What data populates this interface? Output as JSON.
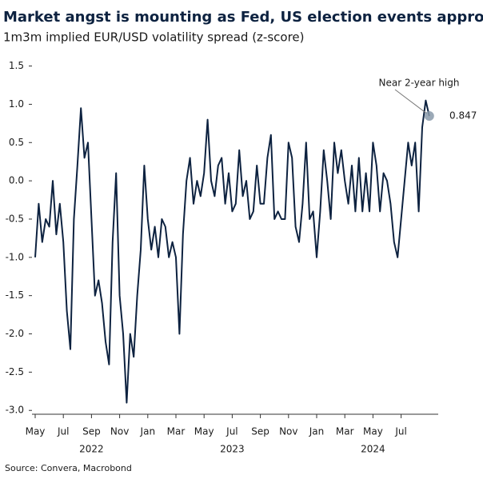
{
  "chart_data": {
    "type": "line",
    "title": "Market angst is mounting as Fed, US election events approach",
    "subtitle": "1m3m implied EUR/USD volatility spread (z-score)",
    "source": "Source: Convera, Macrobond",
    "annotation": "Near 2-year high",
    "categories": [
      "May",
      null,
      null,
      null,
      null,
      null,
      null,
      null,
      "Jul",
      null,
      null,
      null,
      null,
      null,
      null,
      null,
      "Sep",
      null,
      null,
      null,
      null,
      null,
      null,
      null,
      "Nov",
      null,
      null,
      null,
      null,
      null,
      null,
      null,
      "Jan",
      null,
      null,
      null,
      null,
      null,
      null,
      null,
      "Mar",
      null,
      null,
      null,
      null,
      null,
      null,
      null,
      "May",
      null,
      null,
      null,
      null,
      null,
      null,
      null,
      "Jul",
      null,
      null,
      null,
      null,
      null,
      null,
      null,
      "Sep",
      null,
      null,
      null,
      null,
      null,
      null,
      null,
      "Nov",
      null,
      null,
      null,
      null,
      null,
      null,
      null,
      "Jan",
      null,
      null,
      null,
      null,
      null,
      null,
      null,
      "Mar",
      null,
      null,
      null,
      null,
      null,
      null,
      null,
      "May",
      null,
      null,
      null,
      null,
      null,
      null,
      null,
      "Jul",
      null,
      null,
      null,
      null,
      null,
      null,
      null,
      null
    ],
    "year_labels": [
      "2022",
      "2023",
      "2024"
    ],
    "series": [
      {
        "name": "1m3m spread",
        "color": "#0d2240",
        "values": [
          -1.0,
          -0.3,
          -0.8,
          -0.5,
          -0.6,
          0.0,
          -0.7,
          -0.3,
          -0.8,
          -1.7,
          -2.2,
          -0.5,
          0.2,
          0.95,
          0.3,
          0.5,
          -0.5,
          -1.5,
          -1.3,
          -1.6,
          -2.1,
          -2.4,
          -0.8,
          0.1,
          -1.5,
          -2.0,
          -2.9,
          -2.0,
          -2.3,
          -1.5,
          -0.9,
          0.2,
          -0.5,
          -0.9,
          -0.6,
          -1.0,
          -0.5,
          -0.6,
          -1.0,
          -0.8,
          -1.0,
          -2.0,
          -0.7,
          0.0,
          0.3,
          -0.3,
          0.0,
          -0.2,
          0.1,
          0.8,
          0.0,
          -0.2,
          0.2,
          0.3,
          -0.3,
          0.1,
          -0.4,
          -0.3,
          0.4,
          -0.2,
          0.0,
          -0.5,
          -0.4,
          0.2,
          -0.3,
          -0.3,
          0.3,
          0.6,
          -0.5,
          -0.4,
          -0.5,
          -0.5,
          0.5,
          0.3,
          -0.6,
          -0.8,
          -0.3,
          0.5,
          -0.5,
          -0.4,
          -1.0,
          -0.4,
          0.4,
          0.0,
          -0.5,
          0.5,
          0.1,
          0.4,
          0.0,
          -0.3,
          0.2,
          -0.4,
          0.3,
          -0.4,
          0.1,
          -0.4,
          0.5,
          0.2,
          -0.4,
          0.1,
          0.0,
          -0.3,
          -0.8,
          -1.0,
          -0.5,
          0.0,
          0.5,
          0.2,
          0.5,
          -0.4,
          0.7,
          1.05,
          0.847
        ],
        "value_labels": [
          null,
          null,
          null,
          null,
          null,
          null,
          null,
          null,
          null,
          null,
          null,
          null,
          null,
          null,
          null,
          null,
          null,
          null,
          null,
          null,
          null,
          null,
          null,
          null,
          null,
          null,
          null,
          null,
          null,
          null,
          null,
          null,
          null,
          null,
          null,
          null,
          null,
          null,
          null,
          null,
          null,
          null,
          null,
          null,
          null,
          null,
          null,
          null,
          null,
          null,
          null,
          null,
          null,
          null,
          null,
          null,
          null,
          null,
          null,
          null,
          null,
          null,
          null,
          null,
          null,
          null,
          null,
          null,
          null,
          null,
          null,
          null,
          null,
          null,
          null,
          null,
          null,
          null,
          null,
          null,
          null,
          null,
          null,
          null,
          null,
          null,
          null,
          null,
          null,
          null,
          null,
          null,
          null,
          null,
          null,
          null,
          null,
          null,
          null,
          null,
          null,
          null,
          null,
          null,
          null,
          null,
          null,
          null,
          null,
          null,
          null,
          null,
          "0.847"
        ]
      }
    ],
    "ylim": [
      -3.05,
      1.6
    ],
    "yticks": [
      {
        "value": -3.0,
        "label": "-3.0"
      },
      {
        "value": -2.5,
        "label": "-2.5"
      },
      {
        "value": -2.0,
        "label": "-2.0"
      },
      {
        "value": -1.5,
        "label": "-1.5"
      },
      {
        "value": -1.0,
        "label": "-1.0"
      },
      {
        "value": -0.5,
        "label": "-0.5"
      },
      {
        "value": 0.0,
        "label": "0.0"
      },
      {
        "value": 0.5,
        "label": "0.5"
      },
      {
        "value": 1.0,
        "label": "1.0"
      },
      {
        "value": 1.5,
        "label": "1.5"
      }
    ]
  }
}
